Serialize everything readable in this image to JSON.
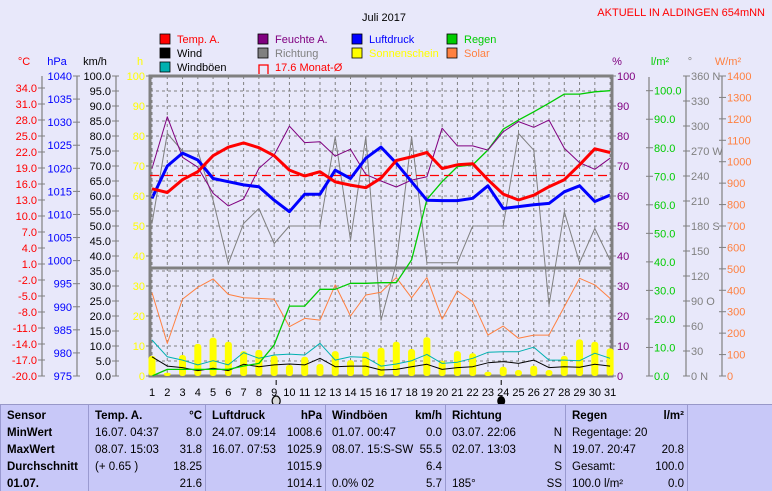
{
  "header": {
    "title": "Juli 2017",
    "station": "AKTUELL IN ALDINGEN 654mNN"
  },
  "legend": [
    {
      "label": "Temp. A.",
      "color": "#ff0000"
    },
    {
      "label": "Wind",
      "color": "#000000"
    },
    {
      "label": "Windböen",
      "color": "#00b0b0"
    },
    {
      "label": "Feuchte A.",
      "color": "#800080"
    },
    {
      "label": "Richtung",
      "color": "#808080"
    },
    {
      "label": "17.6 Monat-Ø",
      "color": "#ff0000"
    },
    {
      "label": "Luftdruck",
      "color": "#0000ff"
    },
    {
      "label": "Sonnenschein",
      "color": "#ffff00"
    },
    {
      "label": "Regen",
      "color": "#00cc00"
    },
    {
      "label": "Solar",
      "color": "#ff8040"
    }
  ],
  "moon": {
    "full_moon_day": 9,
    "new_moon_day": 24
  },
  "chart_data": {
    "type": "line",
    "title": "Juli 2017",
    "x": [
      1,
      2,
      3,
      4,
      5,
      6,
      7,
      8,
      9,
      10,
      11,
      12,
      13,
      14,
      15,
      16,
      17,
      18,
      19,
      20,
      21,
      22,
      23,
      24,
      25,
      26,
      27,
      28,
      29,
      30,
      31
    ],
    "axes": {
      "temp": {
        "unit": "°C",
        "color": "#ff0000",
        "range": [
          -20,
          36.25
        ],
        "ticks": [
          "34.0",
          "31.0",
          "28.0",
          "25.0",
          "22.0",
          "19.0",
          "16.0",
          "13.0",
          "10.0",
          "7.0",
          "4.0",
          "1.0",
          "-2.0",
          "-5.0",
          "-8.0",
          "-11.0",
          "-14.0",
          "-17.0",
          "-20.0"
        ],
        "tick_values": [
          34,
          31,
          28,
          25,
          22,
          19,
          16,
          13,
          10,
          7,
          4,
          1,
          -2,
          -5,
          -8,
          -11,
          -14,
          -17,
          -20
        ]
      },
      "pressure": {
        "unit": "hPa",
        "color": "#0000ff",
        "range": [
          975,
          1040
        ],
        "ticks": [
          "1040",
          "1035",
          "1030",
          "1025",
          "1020",
          "1015",
          "1010",
          "1005",
          "1000",
          "995",
          "990",
          "985",
          "980",
          "975"
        ],
        "tick_values": [
          1040,
          1035,
          1030,
          1025,
          1020,
          1015,
          1010,
          1005,
          1000,
          995,
          990,
          985,
          980,
          975
        ]
      },
      "wind": {
        "unit": "km/h",
        "color": "#000000",
        "range": [
          0,
          100
        ],
        "ticks": [
          "100.0",
          "95.0",
          "90.0",
          "85.0",
          "80.0",
          "75.0",
          "70.0",
          "65.0",
          "60.0",
          "55.0",
          "50.0",
          "45.0",
          "40.0",
          "35.0",
          "30.0",
          "25.0",
          "20.0",
          "15.0",
          "10.0",
          "5.0",
          "0.0"
        ],
        "tick_values": [
          100,
          95,
          90,
          85,
          80,
          75,
          70,
          65,
          60,
          55,
          50,
          45,
          40,
          35,
          30,
          25,
          20,
          15,
          10,
          5,
          0
        ]
      },
      "sun": {
        "unit": "h",
        "color": "#ffff00",
        "range": [
          0,
          100
        ],
        "ticks": [
          "100",
          "90",
          "80",
          "70",
          "60",
          "50",
          "40",
          "30",
          "20",
          "10",
          "0"
        ],
        "tick_values": [
          100,
          90,
          80,
          70,
          60,
          50,
          40,
          30,
          20,
          10,
          0
        ]
      },
      "humidity": {
        "unit": "%",
        "color": "#800080",
        "range": [
          0,
          100
        ],
        "ticks": [
          "100",
          "90",
          "80",
          "70",
          "60",
          "50",
          "40",
          "30",
          "20",
          "10",
          "0"
        ],
        "tick_values": [
          100,
          90,
          80,
          70,
          60,
          50,
          40,
          30,
          20,
          10,
          0
        ]
      },
      "rain": {
        "unit": "l/m²",
        "color": "#00cc00",
        "range": [
          0,
          105.15
        ],
        "ticks": [
          "100.0",
          "90.0",
          "80.0",
          "70.0",
          "60.0",
          "50.0",
          "40.0",
          "30.0",
          "20.0",
          "10.0",
          "0.0"
        ],
        "tick_values": [
          100,
          90,
          80,
          70,
          60,
          50,
          40,
          30,
          20,
          10,
          0
        ]
      },
      "direction": {
        "unit": "°",
        "color": "#808080",
        "range": [
          0,
          360
        ],
        "ticks": [
          "360 N",
          "330",
          "300",
          "270 W",
          "240",
          "210",
          "180 S",
          "150",
          "120",
          "90  O",
          "60",
          "30",
          "0    N"
        ],
        "tick_values": [
          360,
          330,
          300,
          270,
          240,
          210,
          180,
          150,
          120,
          90,
          60,
          30,
          0
        ]
      },
      "solar": {
        "unit": "W/m²",
        "color": "#ff8040",
        "range": [
          0,
          1400
        ],
        "ticks": [
          "1400",
          "1300",
          "1200",
          "1100",
          "1000",
          "900",
          "800",
          "700",
          "600",
          "500",
          "400",
          "300",
          "200",
          "100",
          "0"
        ],
        "tick_values": [
          1400,
          1300,
          1200,
          1100,
          1000,
          900,
          800,
          700,
          600,
          500,
          400,
          300,
          200,
          100,
          0
        ]
      }
    },
    "temp_month_mean": 17.6,
    "series": [
      {
        "name": "Temp. A.",
        "axis": "temp",
        "values": [
          15.1,
          14.4,
          16.8,
          18.3,
          21.3,
          22.9,
          23.7,
          22.8,
          21.3,
          18.6,
          17.5,
          18.3,
          16.4,
          15.8,
          15.3,
          17.1,
          20.4,
          21.1,
          21.9,
          18.9,
          19.6,
          19.8,
          16.8,
          14.1,
          13.0,
          13.9,
          15.5,
          16.8,
          19.6,
          22.6,
          21.9
        ]
      },
      {
        "name": "Luftdruck",
        "axis": "pressure",
        "values": [
          1013.5,
          1020.5,
          1023.3,
          1021.8,
          1017.8,
          1017.1,
          1016.4,
          1016.0,
          1013.1,
          1010.6,
          1014.4,
          1014.4,
          1019.6,
          1017.8,
          1022.2,
          1024.6,
          1021.1,
          1017.1,
          1013.1,
          1013.0,
          1013.0,
          1013.5,
          1016.2,
          1011.3,
          1011.7,
          1012.1,
          1012.4,
          1014.9,
          1016.2,
          1012.8,
          1014.2
        ]
      },
      {
        "name": "Feuchte A.",
        "axis": "humidity",
        "values": [
          69.2,
          86.4,
          72.9,
          69.6,
          60.9,
          56.7,
          59.0,
          69.2,
          73.7,
          83.3,
          77.8,
          78.1,
          73.3,
          75.6,
          67.2,
          65.0,
          63.0,
          65.3,
          66.4,
          82.6,
          76.7,
          76.7,
          75.3,
          81.4,
          84.8,
          82.9,
          85.3,
          75.9,
          71.1,
          68.9,
          72.6
        ]
      },
      {
        "name": "Richtung",
        "axis": "direction",
        "values": [
          183,
          291,
          270,
          270,
          211,
          135,
          183,
          201,
          159,
          180,
          180,
          180,
          287,
          163,
          287,
          67,
          135,
          287,
          136,
          136,
          136,
          180,
          180,
          180,
          291,
          271,
          85,
          197,
          136,
          177,
          139
        ]
      },
      {
        "name": "Regen",
        "axis": "rain",
        "values": [
          0,
          2.3,
          2.3,
          2.3,
          2.3,
          2.3,
          3.5,
          4.4,
          10.9,
          24.5,
          24.5,
          30.4,
          30.4,
          32.5,
          32.5,
          32.7,
          32.7,
          40.7,
          61.9,
          68.1,
          73.4,
          74.0,
          79.2,
          86.5,
          89.7,
          92.6,
          95.6,
          98.8,
          98.8,
          99.6,
          100.0
        ]
      },
      {
        "name": "Solar",
        "axis": "solar",
        "values": [
          389,
          152,
          359,
          414,
          453,
          381,
          365,
          362,
          358,
          230,
          269,
          261,
          425,
          280,
          378,
          391,
          459,
          365,
          459,
          265,
          397,
          347,
          191,
          233,
          176,
          191,
          191,
          323,
          456,
          425,
          362
        ]
      },
      {
        "name": "Windböen",
        "axis": "wind",
        "values": [
          12.0,
          6.4,
          5.3,
          3.7,
          5.1,
          3.7,
          7.8,
          5.9,
          7.0,
          7.3,
          7.0,
          10.9,
          5.3,
          6.4,
          6.2,
          3.3,
          4.0,
          5.1,
          7.2,
          4.2,
          4.6,
          5.9,
          7.9,
          8.1,
          8.1,
          9.6,
          5.3,
          5.3,
          5.1,
          7.6,
          5.9
        ]
      },
      {
        "name": "Wind",
        "axis": "wind",
        "values": [
          6.4,
          3.3,
          2.8,
          1.8,
          2.6,
          1.8,
          3.9,
          3.1,
          3.7,
          4.0,
          3.7,
          5.9,
          3.1,
          3.3,
          3.3,
          2.0,
          2.2,
          3.1,
          3.9,
          2.2,
          2.8,
          3.1,
          4.4,
          4.8,
          4.2,
          5.3,
          2.8,
          3.1,
          2.9,
          3.9,
          3.3
        ]
      },
      {
        "name": "Sonnenschein",
        "axis": "sun",
        "type": "bar",
        "values": [
          6.7,
          1.1,
          7.0,
          10.7,
          12.8,
          11.4,
          8.3,
          8.7,
          6.8,
          3.7,
          6.4,
          4.0,
          8.3,
          5.3,
          8.1,
          9.4,
          11.4,
          9.0,
          12.9,
          5.1,
          8.3,
          7.6,
          1.4,
          3.1,
          2.0,
          3.4,
          2.0,
          6.7,
          12.2,
          11.4,
          9.2
        ]
      }
    ]
  },
  "table": {
    "columns": [
      {
        "header": "Sensor",
        "unit": "",
        "rows": [
          [
            "MinWert",
            ""
          ],
          [
            "MaxWert",
            ""
          ],
          [
            "Durchschnitt",
            ""
          ],
          [
            "01.07.",
            ""
          ]
        ]
      },
      {
        "header": "Temp. A.",
        "unit": "°C",
        "rows": [
          [
            "16.07.  04:37",
            "8.0"
          ],
          [
            "08.07.  15:03",
            "31.8"
          ],
          [
            "(+ 0.65 )",
            "18.25"
          ],
          [
            "",
            "21.6"
          ]
        ]
      },
      {
        "header": "Luftdruck",
        "unit": "hPa",
        "rows": [
          [
            "24.07.  09:14",
            "1008.6"
          ],
          [
            "16.07.  07:53",
            "1025.9"
          ],
          [
            "",
            "1015.9"
          ],
          [
            "",
            "1014.1"
          ]
        ]
      },
      {
        "header": "Windböen",
        "unit": "km/h",
        "rows": [
          [
            "01.07.  00:47",
            "0.0"
          ],
          [
            "08.07.  15:S-SW",
            "55.5"
          ],
          [
            "",
            "6.4"
          ],
          [
            "0.0% 02",
            "5.7"
          ]
        ]
      },
      {
        "header": "Richtung",
        "unit": "",
        "rows": [
          [
            "03.07.  22:06",
            "N"
          ],
          [
            "02.07.  13:03",
            "N"
          ],
          [
            "",
            "S"
          ],
          [
            "185°",
            "SS"
          ]
        ]
      },
      {
        "header": "Regen",
        "unit": "l/m²",
        "rows": [
          [
            "Regentage: 20",
            ""
          ],
          [
            "19.07.  20:47",
            "20.8"
          ],
          [
            "Gesamt:",
            "100.0"
          ],
          [
            "100.0 l/m²",
            "0.0"
          ]
        ]
      }
    ]
  }
}
